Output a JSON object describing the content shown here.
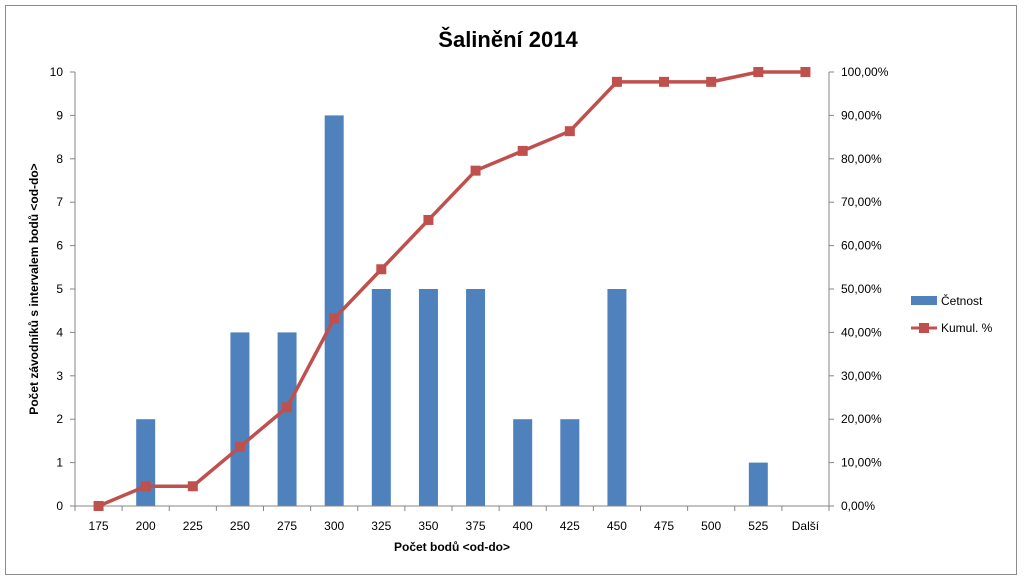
{
  "chart_data": {
    "type": "bar",
    "title": "Šalinění 2014",
    "xlabel": "Počet bodů <od-do>",
    "ylabel": "Počet závodníků s intervalem bodů <od-do>",
    "categories": [
      "175",
      "200",
      "225",
      "250",
      "275",
      "300",
      "325",
      "350",
      "375",
      "400",
      "425",
      "450",
      "475",
      "500",
      "525",
      "Další"
    ],
    "series": [
      {
        "name": "Četnost",
        "type": "bar",
        "axis": "left",
        "color": "#4F81BD",
        "values": [
          0,
          2,
          0,
          4,
          4,
          9,
          5,
          5,
          5,
          2,
          2,
          5,
          0,
          0,
          1,
          0
        ]
      },
      {
        "name": "Kumul. %",
        "type": "line",
        "axis": "right",
        "color": "#C0504D",
        "values": [
          0,
          4.55,
          4.55,
          13.64,
          22.73,
          43.18,
          54.55,
          65.91,
          77.27,
          81.82,
          86.36,
          97.73,
          97.73,
          97.73,
          100,
          100
        ]
      }
    ],
    "ylim": [
      0,
      10
    ],
    "y_ticks": [
      "0",
      "1",
      "2",
      "3",
      "4",
      "5",
      "6",
      "7",
      "8",
      "9",
      "10"
    ],
    "y2lim": [
      0,
      100
    ],
    "y2_ticks": [
      "0,00%",
      "10,00%",
      "20,00%",
      "30,00%",
      "40,00%",
      "50,00%",
      "60,00%",
      "70,00%",
      "80,00%",
      "90,00%",
      "100,00%"
    ],
    "grid": false,
    "legend_position": "right"
  }
}
